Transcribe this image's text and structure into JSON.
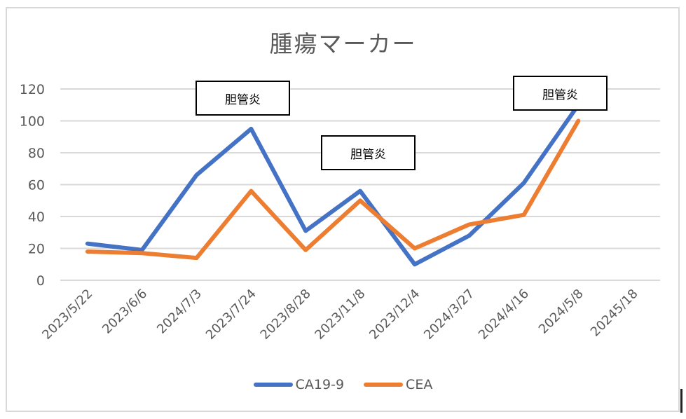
{
  "chart_data": {
    "type": "line",
    "title": "腫瘍マーカー",
    "xlabel": "",
    "ylabel": "",
    "ylim": [
      0,
      120
    ],
    "yticks": [
      0,
      20,
      40,
      60,
      80,
      100,
      120
    ],
    "grid": true,
    "legend_position": "bottom",
    "categories": [
      "2023/5/22",
      "2023/6/6",
      "2024/7/3",
      "2023/7/24",
      "2023/8/28",
      "2023/11/8",
      "2023/12/4",
      "2024/3/27",
      "2024/4/16",
      "2024/5/8",
      "20245/18"
    ],
    "series": [
      {
        "name": "CA19-9",
        "color": "#4472c4",
        "values": [
          23,
          19,
          66,
          95,
          31,
          56,
          10,
          28,
          61,
          110,
          null
        ]
      },
      {
        "name": "CEA",
        "color": "#ed7d31",
        "values": [
          18,
          17,
          14,
          56,
          19,
          50,
          20,
          35,
          41,
          100,
          null
        ]
      }
    ],
    "annotations": [
      {
        "text": "胆管炎",
        "near": "2023/7/24"
      },
      {
        "text": "胆管炎",
        "near": "2023/11/8"
      },
      {
        "text": "胆管炎",
        "near": "2024/5/8"
      }
    ]
  },
  "legend": {
    "items": [
      {
        "label": "CA19-9",
        "color": "#4472c4"
      },
      {
        "label": "CEA",
        "color": "#ed7d31"
      }
    ]
  },
  "colors": {
    "grid": "#d9d9d9",
    "text": "#595959",
    "frame": "#d9d9d9"
  }
}
